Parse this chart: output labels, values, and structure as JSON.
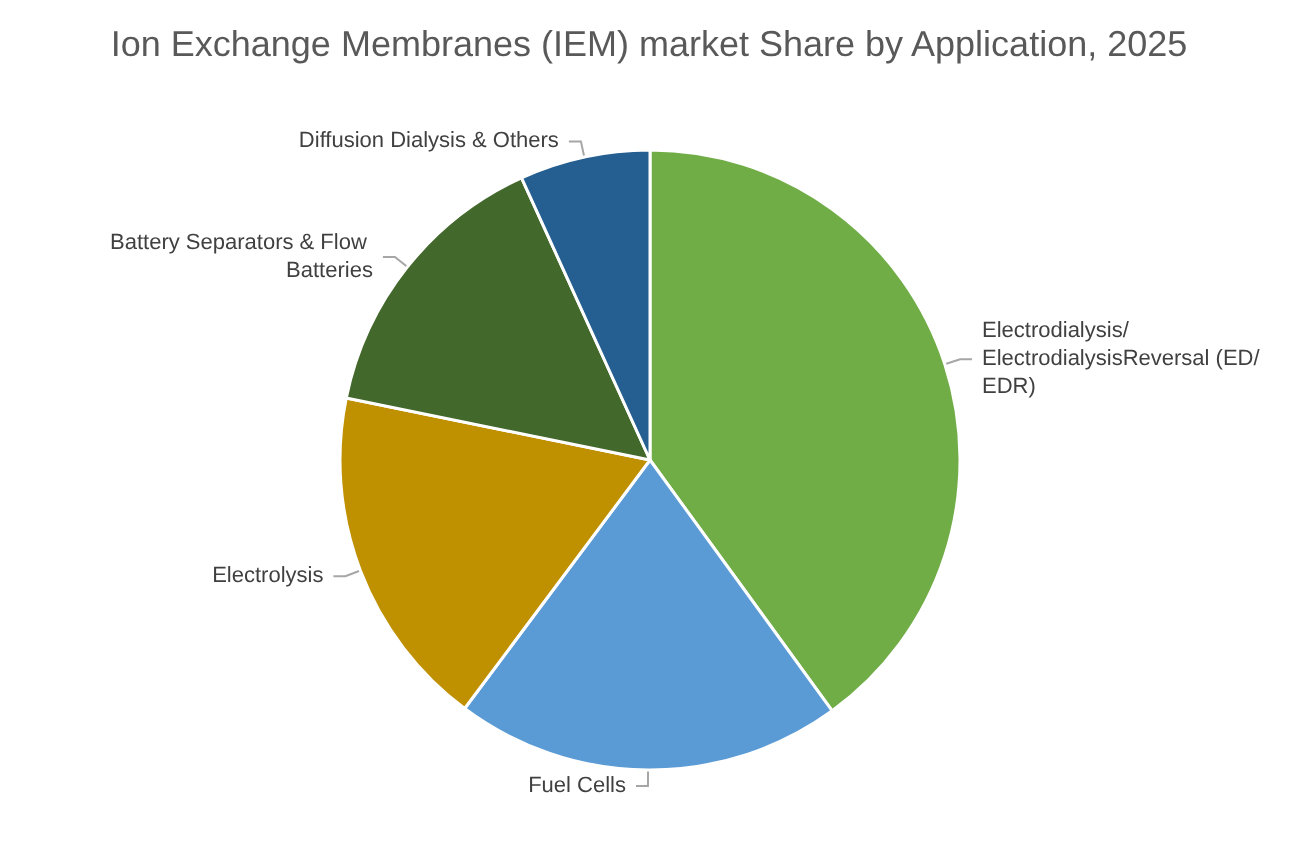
{
  "chart_data": {
    "type": "pie",
    "title": "Ion Exchange Membranes (IEM) market Share by Application, 2025",
    "categories": [
      "Electrodialysis/ ElectrodialysisReversal (ED/EDR)",
      "Fuel Cells",
      "Electrolysis",
      "Battery Separators & Flow Batteries",
      "Diffusion Dialysis & Others"
    ],
    "values": [
      40,
      20.2,
      18,
      15,
      6.8
    ],
    "colors": [
      "#70ad47",
      "#5b9bd5",
      "#bf9000",
      "#43682b",
      "#255e91"
    ],
    "legend": false
  }
}
